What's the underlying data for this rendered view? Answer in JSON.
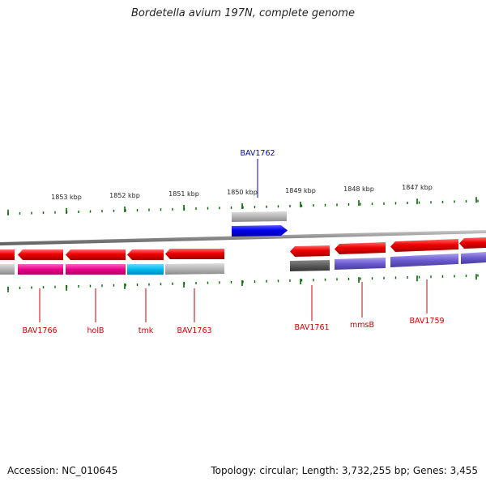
{
  "title": "Bordetella avium 197N, complete genome",
  "footer": {
    "accession": "Accession: NC_010645",
    "summary": "Topology: circular; Length: 3,732,255 bp; Genes: 3,455"
  },
  "colors": {
    "gene_red": "#e00000",
    "gene_blue": "#0000dd",
    "label_red": "#cc0000",
    "label_blue": "#0000cc",
    "tick_green": "#006600",
    "backbone": "#888888",
    "cog_pink": "#e8008a",
    "cog_cyan": "#00aadd",
    "cog_grey": "#aaaaaa",
    "cog_dark": "#555555",
    "cog_purple": "#6a5acd"
  },
  "scale_ticks": [
    {
      "label": "1853 kbp"
    },
    {
      "label": "1852 kbp"
    },
    {
      "label": "1851 kbp"
    },
    {
      "label": "1850 kbp"
    },
    {
      "label": "1849 kbp"
    },
    {
      "label": "1848 kbp"
    },
    {
      "label": "1847 kbp"
    }
  ],
  "genes": [
    {
      "label": "BAV1766",
      "color": "#cc0000"
    },
    {
      "label": "holB",
      "color": "#cc0000"
    },
    {
      "label": "tmk",
      "color": "#cc0000"
    },
    {
      "label": "BAV1763",
      "color": "#cc0000"
    },
    {
      "label": "BAV1762",
      "color": "#0000cc"
    },
    {
      "label": "BAV1761",
      "color": "#cc0000"
    },
    {
      "label": "mmsB",
      "color": "#cc0000"
    },
    {
      "label": "BAV1759",
      "color": "#cc0000"
    }
  ]
}
